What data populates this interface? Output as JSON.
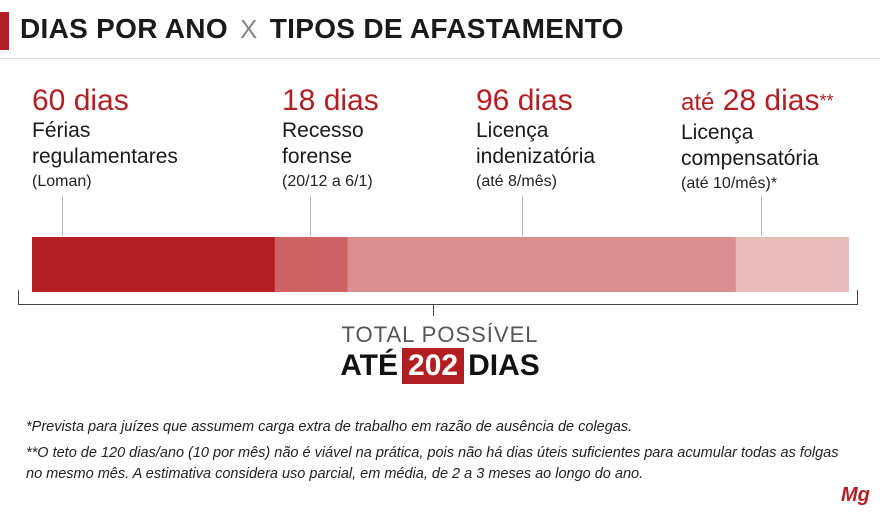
{
  "header": {
    "title_left": "DIAS POR ANO",
    "title_sep": "X",
    "title_right": "TIPOS DE AFASTAMENTO",
    "accent_color": "#b31e22"
  },
  "chart_data": {
    "type": "bar",
    "orientation": "horizontal-stacked",
    "unit": "dias",
    "series": [
      {
        "name": "Férias regulamentares",
        "amount_text": "60 dias",
        "note": "(Loman)",
        "value": 60,
        "color": "#b31e22"
      },
      {
        "name": "Recesso forense",
        "amount_text": "18 dias",
        "note": "(20/12 a 6/1)",
        "value": 18,
        "color": "#cc6264"
      },
      {
        "name": "Licença indenizatória",
        "amount_text": "96 dias",
        "note": "(até 8/mês)",
        "value": 96,
        "color": "#db8e8f"
      },
      {
        "name": "Licença compensatória",
        "amount_prefix": "até",
        "amount_text": "28 dias",
        "amount_suffix": "**",
        "note": "(até 10/mês)*",
        "value": 28,
        "color": "#e9bcbc"
      }
    ],
    "total": {
      "label": "TOTAL POSSÍVEL",
      "prefix": "ATÉ",
      "value": 202,
      "suffix": "DIAS"
    }
  },
  "labels": {
    "seg0": "Férias\nregulamentares",
    "seg1": "Recesso\nforense",
    "seg2": "Licença\nindenizatória",
    "seg3": "Licença\ncompensatória"
  },
  "footnotes": [
    "*Prevista para juízes que assumem carga extra de trabalho em razão de ausência de colegas.",
    "**O teto de 120 dias/ano (10 por mês) não é viável na prática, pois não há dias úteis suficientes para acumular todas as folgas no mesmo mês. A estimativa considera uso parcial, em média, de 2 a 3 meses ao longo do ano."
  ],
  "logo_text": "Mg"
}
